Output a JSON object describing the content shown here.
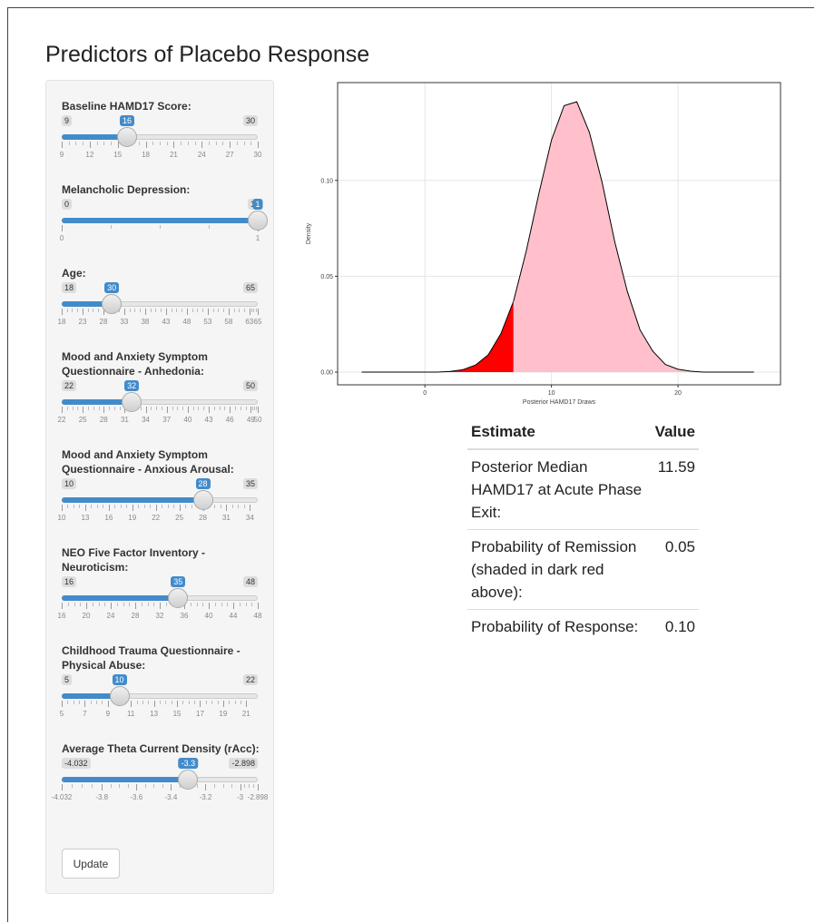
{
  "header": {
    "title": "Predictors of Placebo Response"
  },
  "sidebar": {
    "sliders": [
      {
        "label": "Baseline HAMD17 Score:",
        "min": 9,
        "max": 30,
        "value": 16,
        "ticks": [
          9,
          12,
          15,
          18,
          21,
          24,
          27,
          30
        ]
      },
      {
        "label": "Melancholic Depression:",
        "min": 0,
        "max": 1,
        "value": 1,
        "ticks": [
          0,
          1
        ]
      },
      {
        "label": "Age:",
        "min": 18,
        "max": 65,
        "value": 30,
        "ticks": [
          18,
          23,
          28,
          33,
          38,
          43,
          48,
          53,
          58,
          63,
          65
        ]
      },
      {
        "label": "Mood and Anxiety Symptom Questionnaire - Anhedonia:",
        "min": 22,
        "max": 50,
        "value": 32,
        "ticks": [
          22,
          25,
          28,
          31,
          34,
          37,
          40,
          43,
          46,
          49,
          50
        ]
      },
      {
        "label": "Mood and Anxiety Symptom Questionnaire - Anxious Arousal:",
        "min": 10,
        "max": 35,
        "value": 28,
        "ticks": [
          10,
          13,
          16,
          19,
          22,
          25,
          28,
          31,
          34
        ]
      },
      {
        "label": "NEO Five Factor Inventory - Neuroticism:",
        "min": 16,
        "max": 48,
        "value": 35,
        "ticks": [
          16,
          20,
          24,
          28,
          32,
          36,
          40,
          44,
          48
        ]
      },
      {
        "label": "Childhood Trauma Questionnaire - Physical Abuse:",
        "min": 5,
        "max": 22,
        "value": 10,
        "ticks": [
          5,
          7,
          9,
          11,
          13,
          15,
          17,
          19,
          21
        ]
      },
      {
        "label": "Average Theta Current Density (rAcc):",
        "min": -4.032,
        "max": -2.898,
        "value": -3.3,
        "ticks": [
          -4.032,
          -3.8,
          -3.6,
          -3.4,
          -3.2,
          -3,
          -2.898
        ]
      }
    ],
    "button": "Update"
  },
  "chart_data": {
    "type": "area",
    "x_label": "Posterior HAMD17 Draws",
    "y_label": "Density",
    "x": [
      -5,
      -4,
      -3,
      -2,
      -1,
      0,
      1,
      2,
      3,
      4,
      5,
      6,
      7,
      8,
      9,
      10,
      11,
      12,
      13,
      14,
      15,
      16,
      17,
      18,
      19,
      20,
      21,
      22,
      23,
      24,
      25,
      26
    ],
    "series": [
      {
        "color": "#ff0000",
        "values": [
          0,
          0,
          0,
          0,
          0,
          0,
          0,
          0.0004,
          0.0013,
          0.0037,
          0.009,
          0.02,
          0.037,
          null,
          null,
          null,
          null,
          null,
          null,
          null,
          null,
          null,
          null,
          null,
          null,
          null,
          null,
          null,
          null,
          null,
          null,
          null
        ]
      },
      {
        "color": "#ffc0cb",
        "values": [
          null,
          null,
          null,
          null,
          null,
          null,
          null,
          null,
          null,
          null,
          null,
          null,
          0.037,
          0.063,
          0.093,
          0.121,
          0.139,
          0.141,
          0.125,
          0.099,
          0.068,
          0.042,
          0.022,
          0.011,
          0.004,
          0.0015,
          0.0005,
          0,
          0,
          0,
          0,
          0
        ]
      }
    ],
    "line_color": "#000000",
    "xlim": [
      -6.9,
      28.1
    ],
    "ylim": [
      -0.0066,
      0.151
    ],
    "xticks": [
      0,
      10,
      20
    ],
    "yticks": [
      {
        "value": 0,
        "label": "0.00"
      },
      {
        "value": 0.05,
        "label": "0.05"
      },
      {
        "value": 0.1,
        "label": "0.10"
      }
    ],
    "grid": true
  },
  "table": {
    "headers": [
      "Estimate",
      "Value"
    ],
    "rows": [
      [
        "Posterior Median HAMD17 at Acute Phase Exit:",
        "11.59"
      ],
      [
        "Probability of Remission (shaded in dark red above):",
        "0.05"
      ],
      [
        "Probability of Response:",
        "0.10"
      ]
    ]
  }
}
